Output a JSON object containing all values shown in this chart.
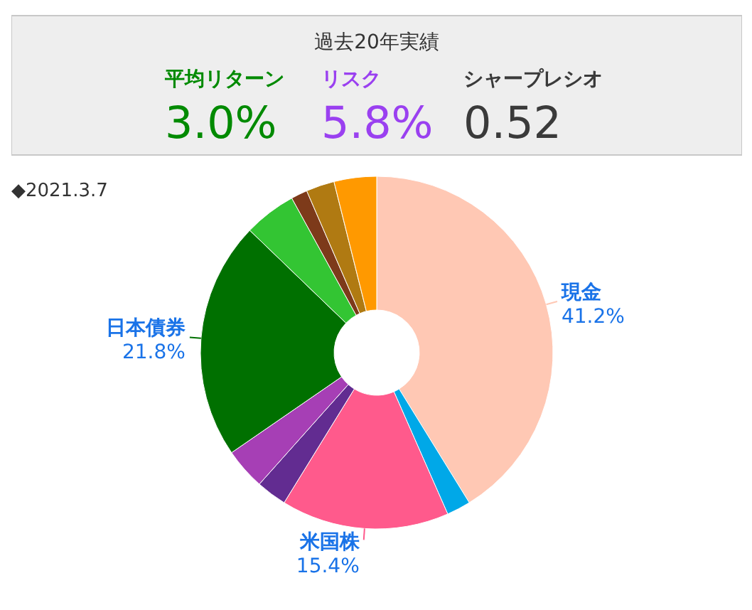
{
  "chart_data": [
    {
      "type": "other",
      "title": "過去20年実績",
      "categories": [
        "平均リターン",
        "リスク",
        "シャープレシオ"
      ],
      "value_labels": [
        "3.0%",
        "5.8%",
        "0.52"
      ]
    },
    {
      "type": "donut",
      "title": "◆2021.3.7",
      "categories": [
        "現金",
        null,
        "米国株",
        null,
        null,
        "日本債券",
        null,
        null,
        null,
        null
      ],
      "values": [
        41.2,
        2.2,
        15.4,
        2.8,
        3.8,
        21.8,
        4.8,
        1.5,
        2.6,
        3.9
      ],
      "value_labels": [
        "41.2%",
        null,
        "15.4%",
        null,
        null,
        "21.8%",
        null,
        null,
        null,
        null
      ],
      "colors": [
        "#ffc8b4",
        "#00a8e8",
        "#ff5a8c",
        "#622c91",
        "#a63fb5",
        "#007000",
        "#33c533",
        "#7d3a1a",
        "#b07a12",
        "#ff9900"
      ]
    }
  ]
}
